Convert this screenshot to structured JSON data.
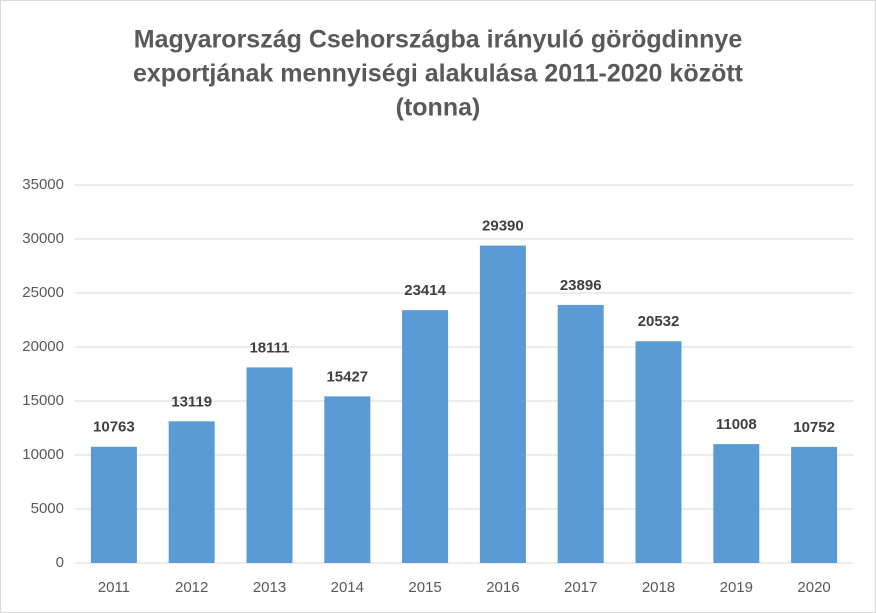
{
  "chart_data": {
    "type": "bar",
    "title": [
      "Magyarország Csehországba irányuló görögdinnye",
      "exportjának mennyiségi alakulása 2011-2020 között",
      "(tonna)"
    ],
    "categories": [
      "2011",
      "2012",
      "2013",
      "2014",
      "2015",
      "2016",
      "2017",
      "2018",
      "2019",
      "2020"
    ],
    "values": [
      10763,
      13119,
      18111,
      15427,
      23414,
      29390,
      23896,
      20532,
      11008,
      10752
    ],
    "color": "#5b9bd5",
    "ylim": [
      0,
      35000
    ],
    "yticks": [
      0,
      5000,
      10000,
      15000,
      20000,
      25000,
      30000,
      35000
    ],
    "grid": true
  }
}
